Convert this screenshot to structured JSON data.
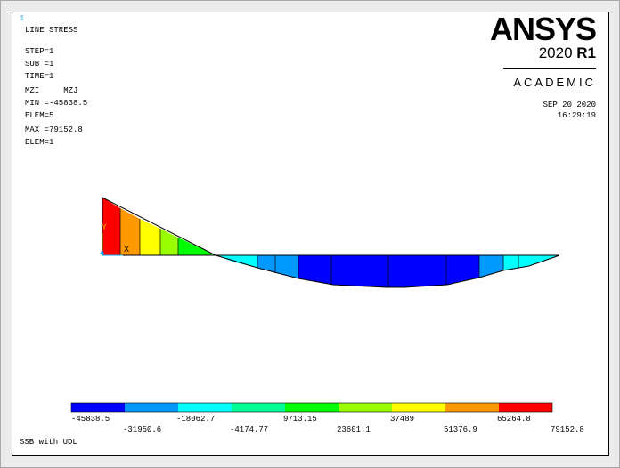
{
  "window_number": "1",
  "info": {
    "title": "LINE STRESS",
    "step": "STEP=1",
    "sub": "SUB =1",
    "time": "TIME=1",
    "items": "MZI     MZJ",
    "min": "MIN =-45838.5",
    "min_elem": "ELEM=5",
    "max": "MAX =79152.8",
    "max_elem": "ELEM=1"
  },
  "logo": {
    "name": "ANSYS",
    "version_year": "2020",
    "version_rel": "R1",
    "edition": "ACADEMIC"
  },
  "date": {
    "date": "SEP 20 2020",
    "time": "16:29:19"
  },
  "axis_labels": {
    "y": "Y",
    "x": "X"
  },
  "legend": {
    "colors": [
      "#0000ff",
      "#0099ff",
      "#00ffff",
      "#00ff99",
      "#00ff00",
      "#99ff00",
      "#ffff00",
      "#ff9900",
      "#ff0000"
    ],
    "labels_top": [
      "-45838.5",
      "-18062.7",
      "9713.15",
      "37489",
      "65264.8"
    ],
    "labels_bottom": [
      "-31950.6",
      "-4174.77",
      "23601.1",
      "51376.9",
      "79152.8"
    ]
  },
  "footer": "SSB with UDL"
}
